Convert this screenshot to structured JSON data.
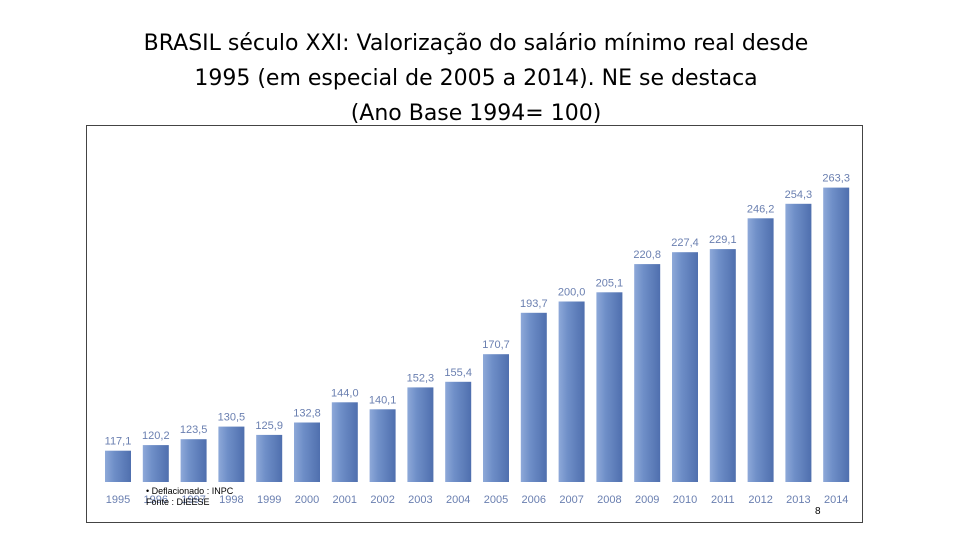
{
  "slide": {
    "title_lines": [
      "BRASIL século XXI: Valorização do salário mínimo real desde",
      "1995 (em especial de 2005 a 2014). NE se destaca",
      "(Ano Base 1994= 100)"
    ],
    "footnote_lines": [
      "• Deflacionado : INPC",
      "Fonte : DIEESE"
    ],
    "page_number": "8"
  },
  "chart_data": {
    "type": "bar",
    "categories": [
      "1995",
      "1996",
      "1997",
      "1998",
      "1999",
      "2000",
      "2001",
      "2002",
      "2003",
      "2004",
      "2005",
      "2006",
      "2007",
      "2008",
      "2009",
      "2010",
      "2011",
      "2012",
      "2013",
      "2014"
    ],
    "values": [
      117.1,
      120.2,
      123.5,
      130.5,
      125.9,
      132.8,
      144.0,
      140.1,
      152.3,
      155.4,
      170.7,
      193.7,
      200.0,
      205.1,
      220.8,
      227.4,
      229.1,
      246.2,
      254.3,
      263.3
    ],
    "value_labels": [
      "117,1",
      "120,2",
      "123,5",
      "130,5",
      "125,9",
      "132,8",
      "144,0",
      "140,1",
      "152,3",
      "155,4",
      "170,7",
      "193,7",
      "200,0",
      "205,1",
      "220,8",
      "227,4",
      "229,1",
      "246,2",
      "254,3",
      "263,3"
    ],
    "ylim": [
      100,
      263.3
    ],
    "bar_color": "#6f8fc8",
    "grid": false,
    "legend": "none"
  }
}
